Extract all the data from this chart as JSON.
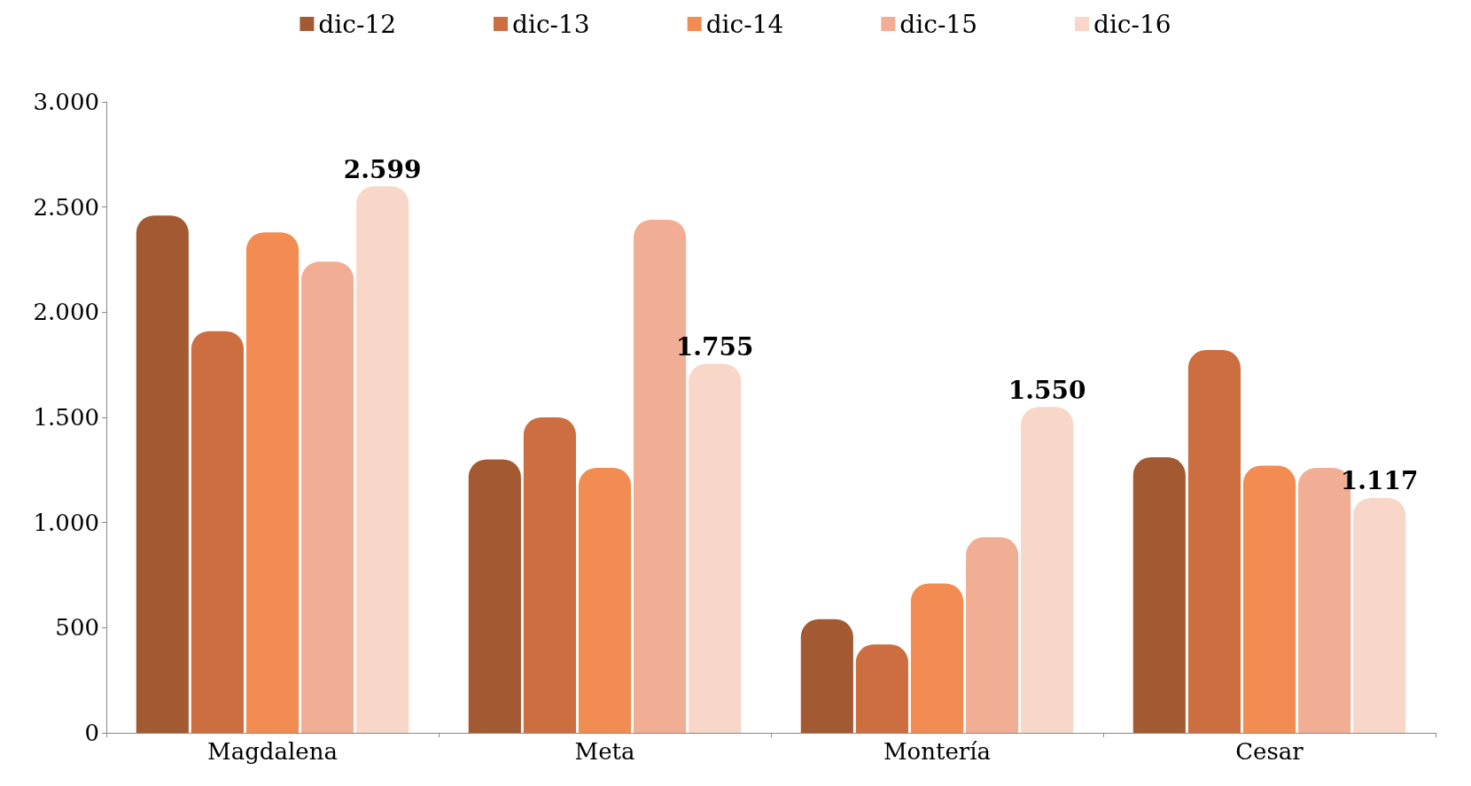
{
  "chart_data": {
    "type": "bar",
    "categories": [
      "Magdalena",
      "Meta",
      "Montería",
      "Cesar"
    ],
    "series": [
      {
        "name": "dic-12",
        "color": "#a35a32",
        "values": [
          2460,
          1300,
          540,
          1310
        ]
      },
      {
        "name": "dic-13",
        "color": "#cc6e40",
        "values": [
          1910,
          1500,
          420,
          1820
        ]
      },
      {
        "name": "dic-14",
        "color": "#f28c52",
        "values": [
          2380,
          1260,
          710,
          1270
        ]
      },
      {
        "name": "dic-15",
        "color": "#f2ae94",
        "values": [
          2240,
          2440,
          930,
          1260
        ]
      },
      {
        "name": "dic-16",
        "color": "#f8d6c8",
        "values": [
          2599,
          1755,
          1550,
          1117
        ],
        "value_labels": [
          "2.599",
          "1.755",
          "1.550",
          "1.117"
        ]
      }
    ],
    "ylim": [
      0,
      3000
    ],
    "yticks": [
      0,
      {
        "value": 500,
        "label": "500"
      },
      {
        "value": 1000,
        "label": "1.000"
      },
      {
        "value": 1500,
        "label": "1.500"
      },
      {
        "value": 2000,
        "label": "2.000"
      },
      {
        "value": 2500,
        "label": "2.500"
      },
      {
        "value": 3000,
        "label": "3.000"
      }
    ],
    "grid": false,
    "legend": "top"
  }
}
